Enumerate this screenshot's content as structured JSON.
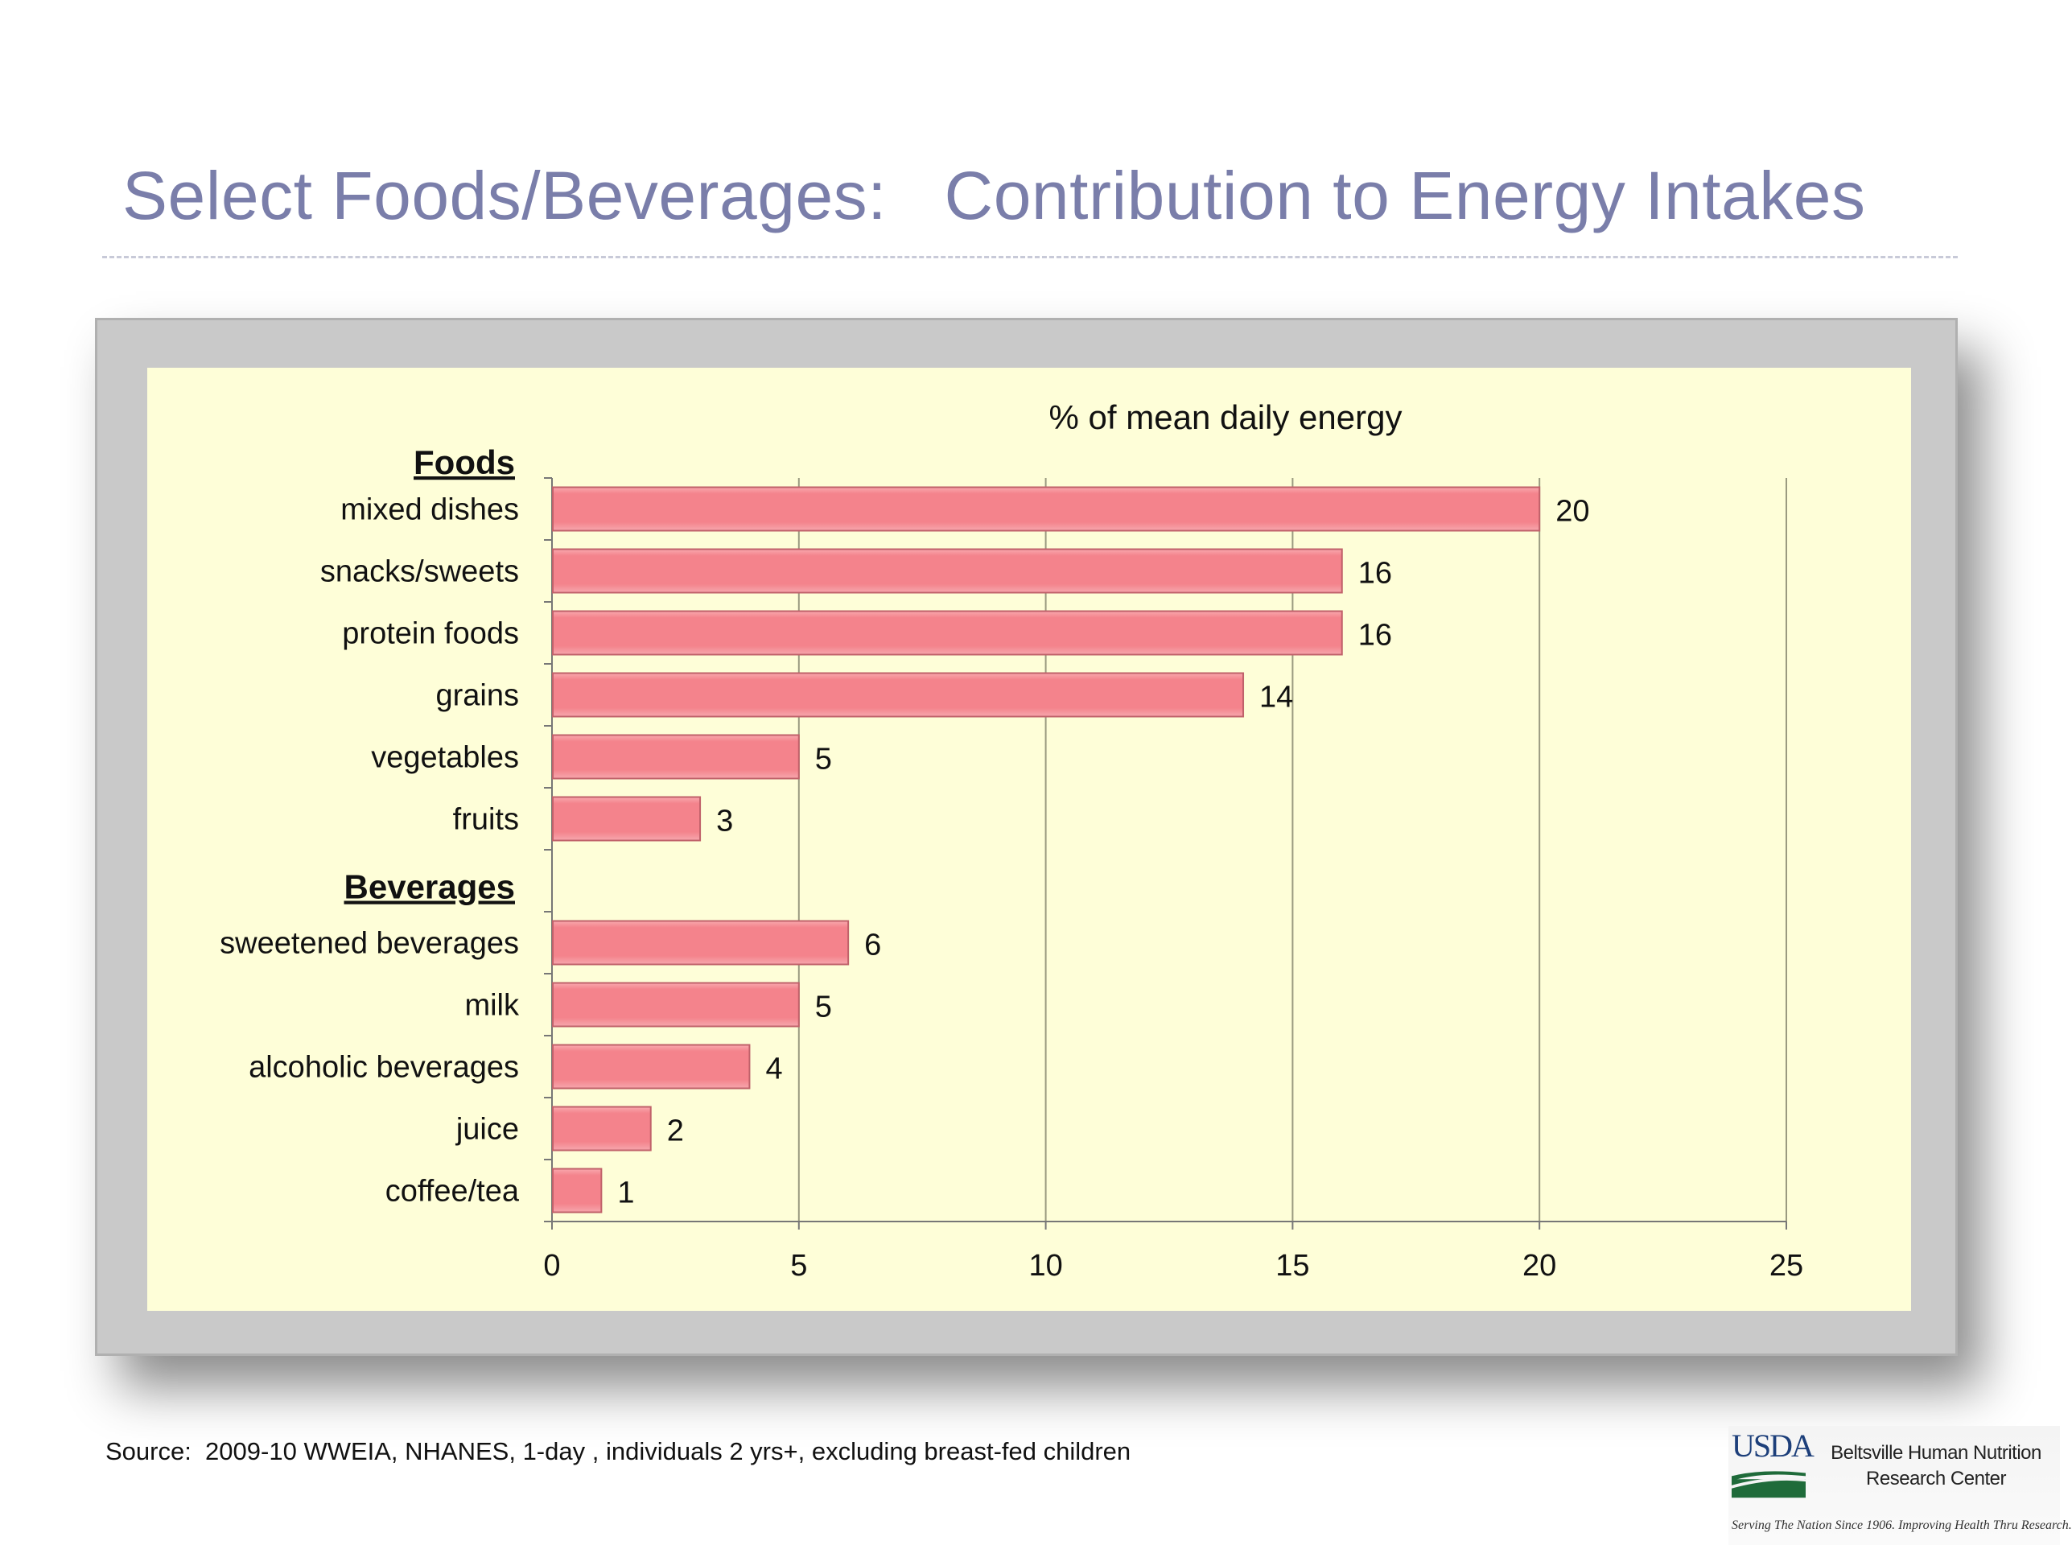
{
  "slide": {
    "title": "Select Foods/Beverages:   Contribution to Energy Intakes",
    "source": "Source:  2009-10 WWEIA, NHANES, 1-day , individuals 2 yrs+, excluding breast-fed children"
  },
  "logo": {
    "acronym": "USDA",
    "name_line1": "Beltsville Human Nutrition",
    "name_line2": "Research Center",
    "tagline": "Serving The Nation Since 1906. Improving Health Thru Research."
  },
  "chart_data": {
    "type": "bar",
    "orientation": "horizontal",
    "title": "% of mean daily energy",
    "xlim": [
      0,
      25
    ],
    "xticks": [
      0,
      5,
      10,
      15,
      20,
      25
    ],
    "grid": "vertical",
    "bar_color": "#f4838c",
    "background_color": "#fefed8",
    "groups": [
      {
        "label": "Foods",
        "categories": [
          "mixed dishes",
          "snacks/sweets",
          "protein foods",
          "grains",
          "vegetables",
          "fruits"
        ],
        "values": [
          20,
          16,
          16,
          14,
          5,
          3
        ]
      },
      {
        "label": "Beverages",
        "categories": [
          "sweetened beverages",
          "milk",
          "alcoholic beverages",
          "juice",
          "coffee/tea"
        ],
        "values": [
          6,
          5,
          4,
          2,
          1
        ]
      }
    ]
  }
}
